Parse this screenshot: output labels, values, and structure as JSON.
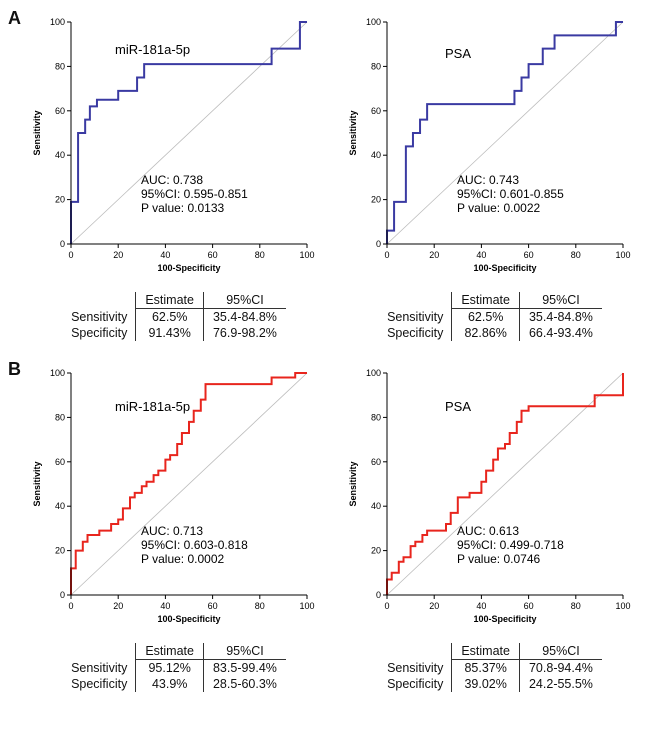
{
  "figure": {
    "panel_a_label": "A",
    "panel_b_label": "B"
  },
  "chart_data": [
    {
      "type": "line",
      "panel": "A",
      "title": "miR-181a-5p",
      "color": "#3a3aa2",
      "xlabel": "100-Specificity",
      "ylabel": "Sensitivity",
      "xlim": [
        0,
        100
      ],
      "ylim": [
        0,
        100
      ],
      "ticks": [
        0,
        20,
        40,
        60,
        80,
        100
      ],
      "diagonal_reference": true,
      "points": [
        [
          0,
          0
        ],
        [
          0,
          19
        ],
        [
          3,
          19
        ],
        [
          3,
          50
        ],
        [
          6,
          50
        ],
        [
          6,
          56
        ],
        [
          8,
          56
        ],
        [
          8,
          62
        ],
        [
          11,
          62
        ],
        [
          11,
          65
        ],
        [
          20,
          65
        ],
        [
          20,
          69
        ],
        [
          28,
          69
        ],
        [
          28,
          75
        ],
        [
          31,
          75
        ],
        [
          31,
          81
        ],
        [
          85,
          81
        ],
        [
          85,
          88
        ],
        [
          97,
          88
        ],
        [
          97,
          100
        ],
        [
          100,
          100
        ]
      ],
      "annotations": {
        "auc": "AUC: 0.738",
        "ci": "95%CI: 0.595-0.851",
        "p": "P value: 0.0133"
      },
      "table": {
        "headers": [
          "Estimate",
          "95%CI"
        ],
        "rows": [
          {
            "label": "Sensitivity",
            "estimate": "62.5%",
            "ci": "35.4-84.8%"
          },
          {
            "label": "Specificity",
            "estimate": "91.43%",
            "ci": "76.9-98.2%"
          }
        ]
      }
    },
    {
      "type": "line",
      "panel": "A",
      "title": "PSA",
      "color": "#3a3aa2",
      "xlabel": "100-Specificity",
      "ylabel": "Sensitivity",
      "xlim": [
        0,
        100
      ],
      "ylim": [
        0,
        100
      ],
      "ticks": [
        0,
        20,
        40,
        60,
        80,
        100
      ],
      "diagonal_reference": true,
      "points": [
        [
          0,
          0
        ],
        [
          0,
          6
        ],
        [
          3,
          6
        ],
        [
          3,
          19
        ],
        [
          8,
          19
        ],
        [
          8,
          44
        ],
        [
          11,
          44
        ],
        [
          11,
          50
        ],
        [
          14,
          50
        ],
        [
          14,
          56
        ],
        [
          17,
          56
        ],
        [
          17,
          63
        ],
        [
          54,
          63
        ],
        [
          54,
          69
        ],
        [
          57,
          69
        ],
        [
          57,
          75
        ],
        [
          60,
          75
        ],
        [
          60,
          81
        ],
        [
          66,
          81
        ],
        [
          66,
          88
        ],
        [
          71,
          88
        ],
        [
          71,
          94
        ],
        [
          97,
          94
        ],
        [
          97,
          100
        ],
        [
          100,
          100
        ]
      ],
      "annotations": {
        "auc": "AUC: 0.743",
        "ci": "95%CI: 0.601-0.855",
        "p": "P value: 0.0022"
      },
      "table": {
        "headers": [
          "Estimate",
          "95%CI"
        ],
        "rows": [
          {
            "label": "Sensitivity",
            "estimate": "62.5%",
            "ci": "35.4-84.8%"
          },
          {
            "label": "Specificity",
            "estimate": "82.86%",
            "ci": "66.4-93.4%"
          }
        ]
      }
    },
    {
      "type": "line",
      "panel": "B",
      "title": "miR-181a-5p",
      "color": "#e8251d",
      "xlabel": "100-Specificity",
      "ylabel": "Sensitivity",
      "xlim": [
        0,
        100
      ],
      "ylim": [
        0,
        100
      ],
      "ticks": [
        0,
        20,
        40,
        60,
        80,
        100
      ],
      "diagonal_reference": true,
      "points": [
        [
          0,
          0
        ],
        [
          0,
          12
        ],
        [
          2,
          12
        ],
        [
          2,
          20
        ],
        [
          5,
          20
        ],
        [
          5,
          24
        ],
        [
          7,
          24
        ],
        [
          7,
          27
        ],
        [
          12,
          27
        ],
        [
          12,
          29
        ],
        [
          17,
          29
        ],
        [
          17,
          32
        ],
        [
          20,
          32
        ],
        [
          20,
          34
        ],
        [
          22,
          34
        ],
        [
          22,
          39
        ],
        [
          25,
          39
        ],
        [
          25,
          44
        ],
        [
          27,
          44
        ],
        [
          27,
          46
        ],
        [
          30,
          46
        ],
        [
          30,
          49
        ],
        [
          32,
          49
        ],
        [
          32,
          51
        ],
        [
          35,
          51
        ],
        [
          35,
          54
        ],
        [
          37,
          54
        ],
        [
          37,
          56
        ],
        [
          40,
          56
        ],
        [
          40,
          61
        ],
        [
          42,
          61
        ],
        [
          42,
          63
        ],
        [
          45,
          63
        ],
        [
          45,
          68
        ],
        [
          47,
          68
        ],
        [
          47,
          73
        ],
        [
          50,
          73
        ],
        [
          50,
          78
        ],
        [
          52,
          78
        ],
        [
          52,
          83
        ],
        [
          55,
          83
        ],
        [
          55,
          88
        ],
        [
          57,
          88
        ],
        [
          57,
          95
        ],
        [
          85,
          95
        ],
        [
          85,
          98
        ],
        [
          95,
          98
        ],
        [
          95,
          100
        ],
        [
          100,
          100
        ]
      ],
      "annotations": {
        "auc": "AUC: 0.713",
        "ci": "95%CI: 0.603-0.818",
        "p": "P value: 0.0002"
      },
      "table": {
        "headers": [
          "Estimate",
          "95%CI"
        ],
        "rows": [
          {
            "label": "Sensitivity",
            "estimate": "95.12%",
            "ci": "83.5-99.4%"
          },
          {
            "label": "Specificity",
            "estimate": "43.9%",
            "ci": "28.5-60.3%"
          }
        ]
      }
    },
    {
      "type": "line",
      "panel": "B",
      "title": "PSA",
      "color": "#e8251d",
      "xlabel": "100-Specificity",
      "ylabel": "Sensitivity",
      "xlim": [
        0,
        100
      ],
      "ylim": [
        0,
        100
      ],
      "ticks": [
        0,
        20,
        40,
        60,
        80,
        100
      ],
      "diagonal_reference": true,
      "points": [
        [
          0,
          0
        ],
        [
          0,
          7
        ],
        [
          2,
          7
        ],
        [
          2,
          10
        ],
        [
          5,
          10
        ],
        [
          5,
          15
        ],
        [
          7,
          15
        ],
        [
          7,
          17
        ],
        [
          10,
          17
        ],
        [
          10,
          22
        ],
        [
          12,
          22
        ],
        [
          12,
          24
        ],
        [
          15,
          24
        ],
        [
          15,
          27
        ],
        [
          17,
          27
        ],
        [
          17,
          29
        ],
        [
          25,
          29
        ],
        [
          25,
          32
        ],
        [
          27,
          32
        ],
        [
          27,
          37
        ],
        [
          30,
          37
        ],
        [
          30,
          44
        ],
        [
          35,
          44
        ],
        [
          35,
          46
        ],
        [
          40,
          46
        ],
        [
          40,
          51
        ],
        [
          42,
          51
        ],
        [
          42,
          56
        ],
        [
          45,
          56
        ],
        [
          45,
          61
        ],
        [
          47,
          61
        ],
        [
          47,
          66
        ],
        [
          50,
          66
        ],
        [
          50,
          68
        ],
        [
          52,
          68
        ],
        [
          52,
          73
        ],
        [
          55,
          73
        ],
        [
          55,
          78
        ],
        [
          57,
          78
        ],
        [
          57,
          83
        ],
        [
          60,
          83
        ],
        [
          60,
          85
        ],
        [
          88,
          85
        ],
        [
          88,
          90
        ],
        [
          100,
          90
        ],
        [
          100,
          100
        ]
      ],
      "annotations": {
        "auc": "AUC: 0.613",
        "ci": "95%CI: 0.499-0.718",
        "p": "P value: 0.0746"
      },
      "table": {
        "headers": [
          "Estimate",
          "95%CI"
        ],
        "rows": [
          {
            "label": "Sensitivity",
            "estimate": "85.37%",
            "ci": "70.8-94.4%"
          },
          {
            "label": "Specificity",
            "estimate": "39.02%",
            "ci": "24.2-55.5%"
          }
        ]
      }
    }
  ]
}
